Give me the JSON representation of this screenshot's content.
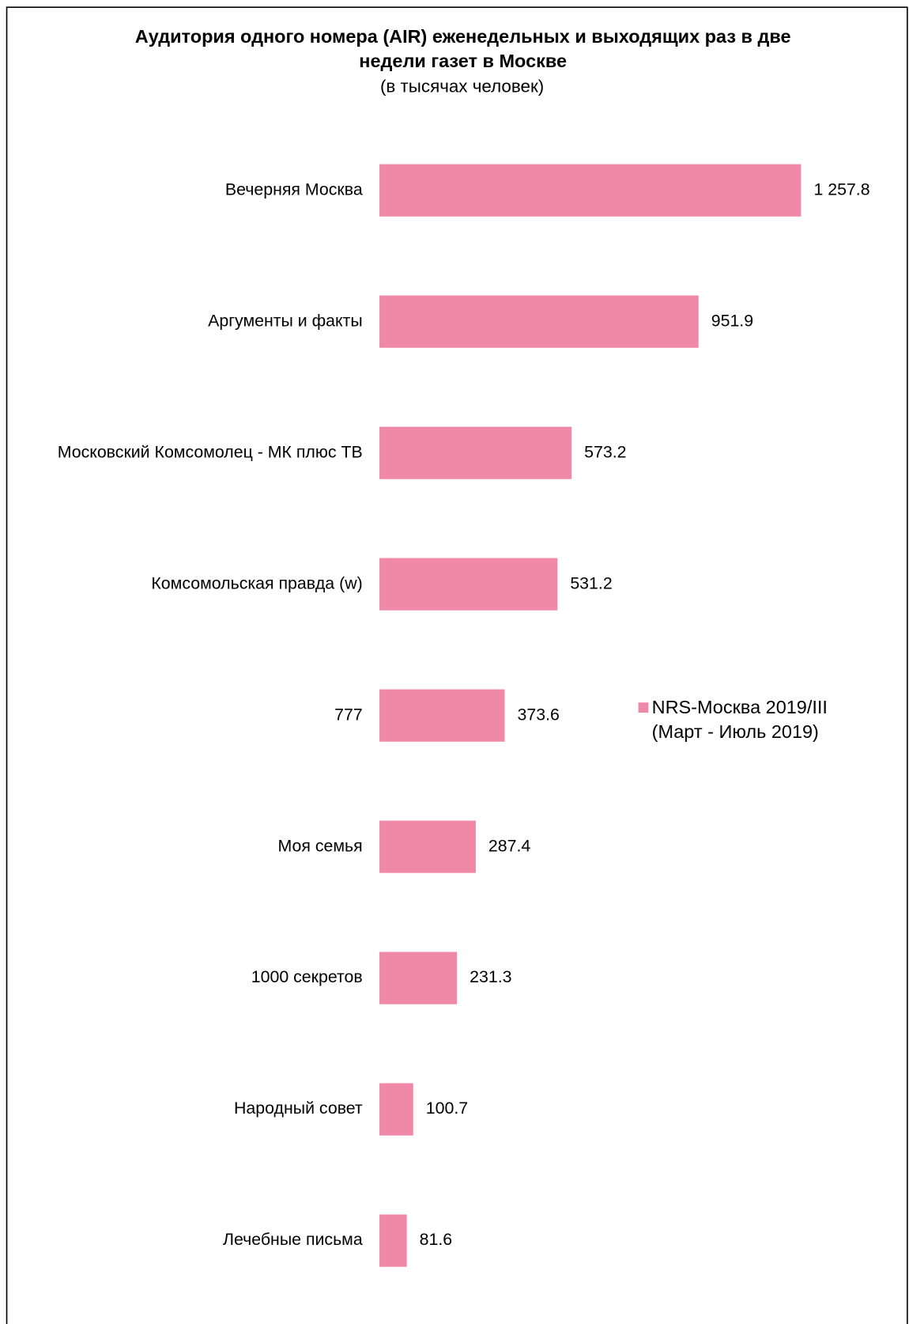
{
  "chart_data": {
    "type": "barh",
    "title": "Аудитория одного номера (AIR) еженедельных и выходящих раз в две недели газет в Москве",
    "subtitle": "(в тысячах человек)",
    "categories": [
      "Вечерняя Москва",
      "Аргументы и факты",
      "Московский Комсомолец - МК плюс ТВ",
      "Комсомольская правда (w)",
      "777",
      "Моя семья",
      "1000 секретов",
      "Народный совет",
      "Лечебные письма"
    ],
    "series": [
      {
        "name": "NRS-Москва 2019/III (Март - Июль 2019)",
        "color": "#f088a8",
        "values": [
          1257.8,
          951.9,
          573.2,
          531.2,
          373.6,
          287.4,
          231.3,
          100.7,
          81.6
        ],
        "value_labels": [
          "1 257.8",
          "951.9",
          "573.2",
          "531.2",
          "373.6",
          "287.4",
          "231.3",
          "100.7",
          "81.6"
        ]
      }
    ],
    "legend": "right"
  }
}
